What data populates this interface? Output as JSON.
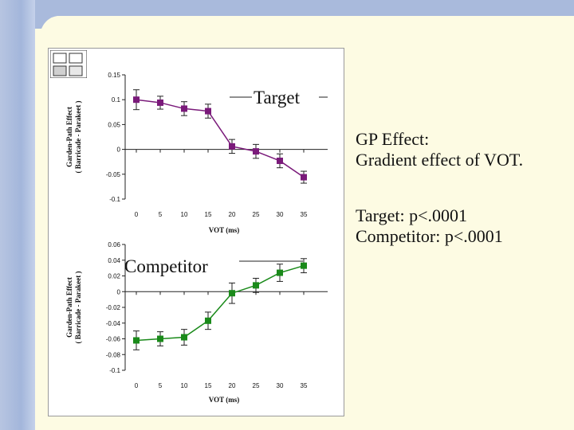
{
  "colors": {
    "target": "#7a1a7a",
    "competitor": "#1a8a1a"
  },
  "notes": {
    "gp_line1": "GP Effect:",
    "gp_line2": "Gradient effect of VOT.",
    "target_p": "Target: p<.0001",
    "competitor_p": "Competitor: p<.0001"
  },
  "chart_data": [
    {
      "type": "line",
      "label": "Target",
      "xlabel": "VOT (ms)",
      "ylabel_line1": "Garden-Path Effect",
      "ylabel_line2": "( Barricade - Parakeet )",
      "x": [
        0,
        5,
        10,
        15,
        20,
        25,
        30,
        35
      ],
      "x_tick_labels": [
        "0",
        "5",
        "10",
        "15",
        "20",
        "25",
        "30",
        "35"
      ],
      "values": [
        0.1,
        0.094,
        0.082,
        0.077,
        0.006,
        -0.004,
        -0.023,
        -0.056
      ],
      "error": [
        0.02,
        0.013,
        0.014,
        0.014,
        0.014,
        0.014,
        0.014,
        0.012
      ],
      "ylim": [
        -0.1,
        0.15
      ],
      "y_ticks": [
        0.15,
        0.1,
        0.05,
        0,
        -0.05,
        -0.1
      ],
      "y_tick_labels": [
        "0.15",
        "0.1",
        "0.05",
        "0",
        "-0.05",
        "-0.1"
      ]
    },
    {
      "type": "line",
      "label": "Competitor",
      "xlabel": "VOT (ms)",
      "ylabel_line1": "Garden-Path Effect",
      "ylabel_line2": "( Barricade - Parakeet )",
      "x": [
        0,
        5,
        10,
        15,
        20,
        25,
        30,
        35
      ],
      "x_tick_labels": [
        "0",
        "5",
        "10",
        "15",
        "20",
        "25",
        "30",
        "35"
      ],
      "values": [
        -0.062,
        -0.06,
        -0.058,
        -0.037,
        -0.002,
        0.008,
        0.024,
        0.033
      ],
      "error": [
        0.012,
        0.009,
        0.01,
        0.011,
        0.013,
        0.009,
        0.011,
        0.009
      ],
      "ylim": [
        -0.1,
        0.06
      ],
      "y_ticks": [
        0.06,
        0.04,
        0.02,
        0,
        -0.02,
        -0.04,
        -0.06,
        -0.08,
        -0.1
      ],
      "y_tick_labels": [
        "0.06",
        "0.04",
        "0.02",
        "0",
        "-0.02",
        "-0.04",
        "-0.06",
        "-0.08",
        "-0.1"
      ]
    }
  ]
}
